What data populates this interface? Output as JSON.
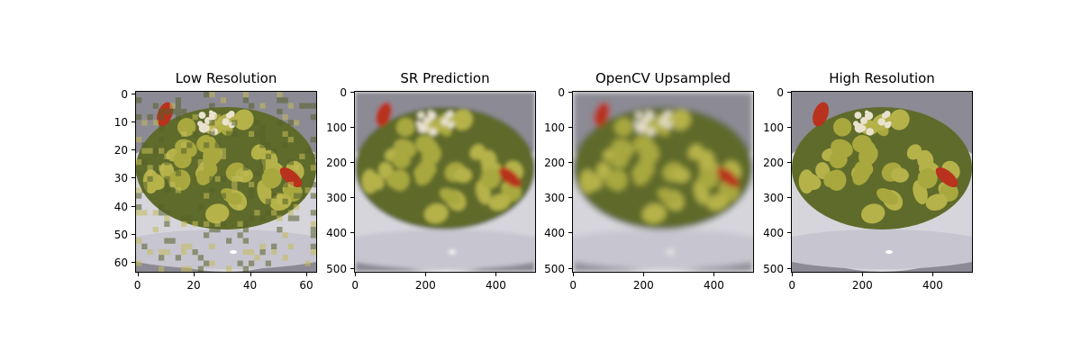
{
  "panels": [
    {
      "title": "Low Resolution",
      "x_ticks": [
        "0",
        "20",
        "40",
        "60"
      ],
      "y_ticks": [
        "0",
        "10",
        "20",
        "30",
        "40",
        "50",
        "60"
      ],
      "blur": "pixelated"
    },
    {
      "title": "SR Prediction",
      "x_ticks": [
        "0",
        "200",
        "400"
      ],
      "y_ticks": [
        "0",
        "100",
        "200",
        "300",
        "400",
        "500"
      ],
      "blur": "medium"
    },
    {
      "title": "OpenCV Upsampled",
      "x_ticks": [
        "0",
        "200",
        "400"
      ],
      "y_ticks": [
        "0",
        "100",
        "200",
        "300",
        "400",
        "500"
      ],
      "blur": "high"
    },
    {
      "title": "High Resolution",
      "x_ticks": [
        "0",
        "200",
        "400"
      ],
      "y_ticks": [
        "0",
        "100",
        "200",
        "300",
        "400",
        "500"
      ],
      "blur": "none"
    }
  ],
  "image_description": "gnocchi with pesto, cheese and red pepper in a white bowl",
  "colors": {
    "pasta": "#b5b24a",
    "pesto": "#5f6b2a",
    "bowl": "#d6d5dc",
    "table": "#8c8a94",
    "pepper": "#b8321e",
    "cheese": "#e9e2cf"
  }
}
